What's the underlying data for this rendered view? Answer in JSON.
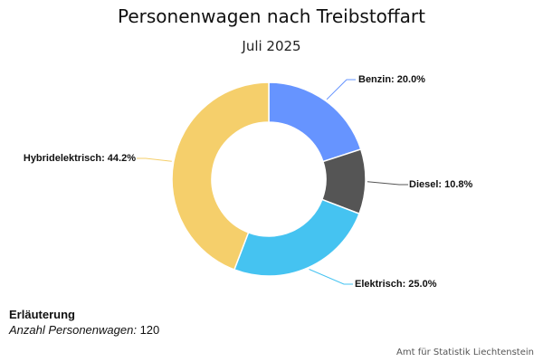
{
  "chart_data": {
    "type": "pie",
    "title": "Personenwagen nach Treibstoffart",
    "subtitle": "Juli 2025",
    "categories": [
      "Benzin",
      "Diesel",
      "Elektrisch",
      "Hybridelektrisch"
    ],
    "values": [
      20.0,
      10.8,
      25.0,
      44.2
    ],
    "unit": "%",
    "labels": [
      "Benzin: 20.0%",
      "Diesel: 10.8%",
      "Elektrisch: 25.0%",
      "Hybridelektrisch: 44.2%"
    ],
    "colors": [
      "#6694FF",
      "#555555",
      "#45C3F1",
      "#F5CF6B"
    ],
    "donut": true
  },
  "note": {
    "heading": "Erläuterung",
    "key": "Anzahl Personenwagen:",
    "value": "120"
  },
  "credits": "Amt für Statistik Liechtenstein"
}
